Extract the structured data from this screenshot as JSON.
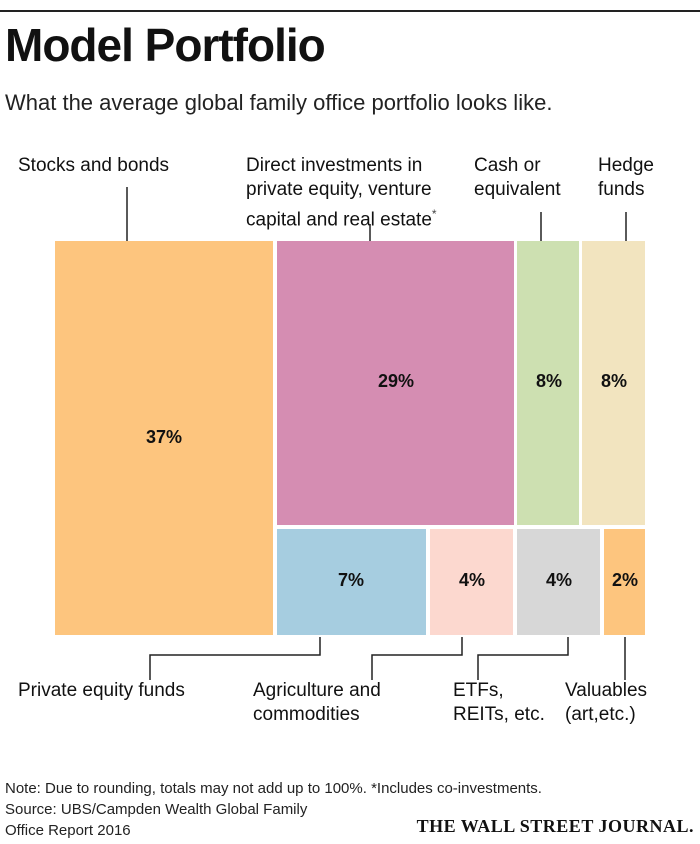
{
  "title": "Model Portfolio",
  "subtitle": "What the average global family office portfolio looks like.",
  "colors": {
    "stocks": "#fdc57e",
    "direct": "#d58db2",
    "cash": "#cde0b1",
    "hedge": "#f2e4bf",
    "pe_funds": "#a6cde0",
    "agri": "#fcd8cf",
    "etfs": "#d7d7d7",
    "valuables": "#fdc57e",
    "leader": "#222222"
  },
  "labels": {
    "stocks": [
      "Stocks and bonds"
    ],
    "direct": [
      "Direct investments in",
      "private equity, venture",
      "capital and real estate"
    ],
    "direct_mark": "*",
    "cash": [
      "Cash or",
      "equivalent"
    ],
    "hedge": [
      "Hedge",
      "funds"
    ],
    "pe_funds": [
      "Private equity funds"
    ],
    "agri": [
      "Agriculture and",
      "commodities"
    ],
    "etfs": [
      "ETFs,",
      "REITs, etc."
    ],
    "valuables": [
      "Valuables",
      "(art,etc.)"
    ]
  },
  "chart_data": {
    "type": "treemap",
    "unit": "%",
    "items": [
      {
        "id": "stocks",
        "name": "Stocks and bonds",
        "value": 37,
        "label": "37%"
      },
      {
        "id": "direct",
        "name": "Direct investments in private equity, venture capital and real estate",
        "value": 29,
        "label": "29%"
      },
      {
        "id": "cash",
        "name": "Cash or equivalent",
        "value": 8,
        "label": "8%"
      },
      {
        "id": "hedge",
        "name": "Hedge funds",
        "value": 8,
        "label": "8%"
      },
      {
        "id": "pe_funds",
        "name": "Private equity funds",
        "value": 7,
        "label": "7%"
      },
      {
        "id": "agri",
        "name": "Agriculture and commodities",
        "value": 4,
        "label": "4%"
      },
      {
        "id": "etfs",
        "name": "ETFs, REITs, etc.",
        "value": 4,
        "label": "4%"
      },
      {
        "id": "valuables",
        "name": "Valuables (art,etc.)",
        "value": 2,
        "label": "2%"
      }
    ]
  },
  "note": "Note: Due to rounding, totals may not add up to 100%. *Includes co-investments.",
  "source_line1": "Source: UBS/Campden Wealth Global Family",
  "source_line2": "Office Report 2016",
  "brand": "THE WALL STREET JOURNAL."
}
